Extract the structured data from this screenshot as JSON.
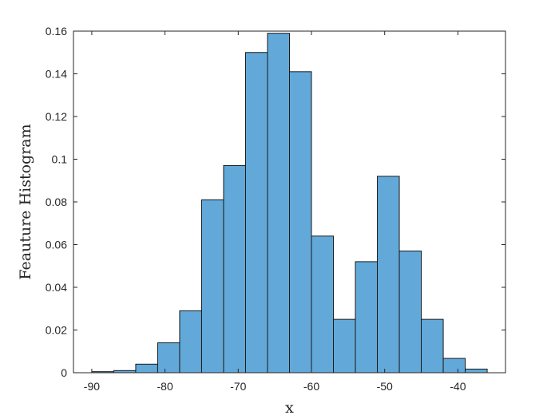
{
  "chart_data": {
    "type": "bar",
    "title": "",
    "xlabel": "x",
    "ylabel": "Feauture Histogram",
    "xlim": [
      -92.5,
      -33.5
    ],
    "ylim": [
      0,
      0.16
    ],
    "grid": false,
    "bin_edges": [
      -90,
      -87,
      -84,
      -81,
      -78,
      -75,
      -72,
      -69,
      -66,
      -63,
      -60,
      -57,
      -54,
      -51,
      -48,
      -45,
      -42,
      -39,
      -36
    ],
    "values": [
      0.0005,
      0.001,
      0.004,
      0.014,
      0.029,
      0.081,
      0.097,
      0.15,
      0.159,
      0.141,
      0.064,
      0.025,
      0.052,
      0.092,
      0.057,
      0.025,
      0.0067,
      0.0017
    ],
    "x_ticks": [
      -90,
      -80,
      -70,
      -60,
      -50,
      -40
    ],
    "x_tick_labels": [
      "-90",
      "-80",
      "-70",
      "-60",
      "-50",
      "-40"
    ],
    "y_ticks": [
      0,
      0.02,
      0.04,
      0.06,
      0.08,
      0.1,
      0.12,
      0.14,
      0.16
    ],
    "y_tick_labels": [
      "0",
      "0.02",
      "0.04",
      "0.06",
      "0.08",
      "0.1",
      "0.12",
      "0.14",
      "0.16"
    ],
    "colors": {
      "bar_fill": "#62a9d9",
      "bar_edge": "#1a1a1a",
      "axis": "#262626"
    }
  }
}
